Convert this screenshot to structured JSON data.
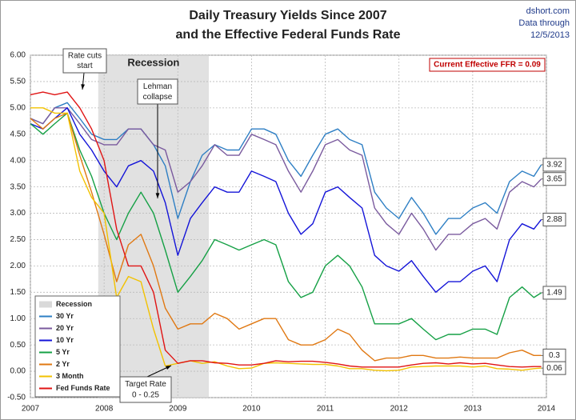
{
  "chart_data": {
    "type": "line",
    "title": [
      "Daily Treasury Yields Since 2007",
      "and the Effective Federal Funds Rate"
    ],
    "source": [
      "dshort.com",
      "Data through",
      "12/5/2013"
    ],
    "xlim": [
      2007,
      2014
    ],
    "xticks": [
      2007,
      2008,
      2009,
      2010,
      2011,
      2012,
      2013,
      2014
    ],
    "ylim": [
      -0.5,
      6
    ],
    "yticks": [
      {
        "value": -0.5,
        "label": "-0.50"
      },
      {
        "value": 0,
        "label": "0.00"
      },
      {
        "value": 0.5,
        "label": "0.50"
      },
      {
        "value": 1,
        "label": "1.00"
      },
      {
        "value": 1.5,
        "label": "1.50"
      },
      {
        "value": 2,
        "label": "2.00"
      },
      {
        "value": 2.5,
        "label": "2.50"
      },
      {
        "value": 3,
        "label": "3.00"
      },
      {
        "value": 3.5,
        "label": "3.50"
      },
      {
        "value": 4,
        "label": "4.00"
      },
      {
        "value": 4.5,
        "label": "4.50"
      },
      {
        "value": 5,
        "label": "5.00"
      },
      {
        "value": 5.5,
        "label": "5.50"
      },
      {
        "value": 6,
        "label": "6.00"
      }
    ],
    "grid": true,
    "recession": {
      "name": "Recession",
      "start": 2007.92,
      "end": 2009.42,
      "color": "#d9d9d9"
    },
    "x": [
      2007.0,
      2007.17,
      2007.33,
      2007.5,
      2007.67,
      2007.83,
      2008.0,
      2008.17,
      2008.33,
      2008.5,
      2008.67,
      2008.83,
      2009.0,
      2009.17,
      2009.33,
      2009.5,
      2009.67,
      2009.83,
      2010.0,
      2010.17,
      2010.33,
      2010.5,
      2010.67,
      2010.83,
      2011.0,
      2011.17,
      2011.33,
      2011.5,
      2011.67,
      2011.83,
      2012.0,
      2012.17,
      2012.33,
      2012.5,
      2012.67,
      2012.83,
      2013.0,
      2013.17,
      2013.33,
      2013.5,
      2013.67,
      2013.83,
      2013.93
    ],
    "series": [
      {
        "name": "30 Yr",
        "color": "#2e7fc4",
        "end_label": true,
        "values": [
          4.8,
          4.7,
          5.0,
          5.1,
          4.8,
          4.5,
          4.4,
          4.4,
          4.6,
          4.6,
          4.3,
          3.9,
          2.9,
          3.6,
          4.1,
          4.3,
          4.2,
          4.2,
          4.6,
          4.6,
          4.5,
          4.0,
          3.7,
          4.1,
          4.5,
          4.6,
          4.4,
          4.3,
          3.4,
          3.1,
          2.9,
          3.3,
          3.0,
          2.6,
          2.9,
          2.9,
          3.1,
          3.2,
          3.0,
          3.6,
          3.8,
          3.7,
          3.92
        ]
      },
      {
        "name": "20 Yr",
        "color": "#7a5a9e",
        "end_label": true,
        "values": [
          4.8,
          4.7,
          5.0,
          5.0,
          4.7,
          4.4,
          4.3,
          4.3,
          4.6,
          4.6,
          4.3,
          4.2,
          3.4,
          3.6,
          3.9,
          4.3,
          4.1,
          4.1,
          4.5,
          4.4,
          4.3,
          3.8,
          3.4,
          3.8,
          4.3,
          4.4,
          4.2,
          4.1,
          3.1,
          2.8,
          2.6,
          3.0,
          2.7,
          2.3,
          2.6,
          2.6,
          2.8,
          2.9,
          2.7,
          3.4,
          3.6,
          3.5,
          3.65
        ]
      },
      {
        "name": "10 Yr",
        "color": "#1414d8",
        "end_label": true,
        "values": [
          4.7,
          4.6,
          4.8,
          5.0,
          4.5,
          4.2,
          3.8,
          3.5,
          3.9,
          4.0,
          3.8,
          3.2,
          2.2,
          2.9,
          3.2,
          3.5,
          3.4,
          3.4,
          3.8,
          3.7,
          3.6,
          3.0,
          2.6,
          2.8,
          3.4,
          3.5,
          3.3,
          3.1,
          2.2,
          2.0,
          1.9,
          2.1,
          1.8,
          1.5,
          1.7,
          1.7,
          1.9,
          2.0,
          1.7,
          2.5,
          2.8,
          2.7,
          2.88
        ]
      },
      {
        "name": "5 Yr",
        "color": "#15a045",
        "end_label": true,
        "values": [
          4.7,
          4.5,
          4.7,
          4.9,
          4.2,
          3.7,
          3.0,
          2.5,
          3.0,
          3.4,
          3.0,
          2.3,
          1.5,
          1.8,
          2.1,
          2.5,
          2.4,
          2.3,
          2.4,
          2.5,
          2.4,
          1.7,
          1.4,
          1.5,
          2.0,
          2.2,
          2.0,
          1.6,
          0.9,
          0.9,
          0.9,
          1.0,
          0.8,
          0.6,
          0.7,
          0.7,
          0.8,
          0.8,
          0.7,
          1.4,
          1.6,
          1.4,
          1.49
        ]
      },
      {
        "name": "2 Yr",
        "color": "#e07812",
        "end_label": true,
        "values": [
          4.8,
          4.6,
          4.8,
          4.9,
          4.1,
          3.4,
          2.6,
          1.7,
          2.4,
          2.6,
          2.0,
          1.2,
          0.8,
          0.9,
          0.9,
          1.1,
          1.0,
          0.8,
          0.9,
          1.0,
          1.0,
          0.6,
          0.5,
          0.5,
          0.6,
          0.8,
          0.7,
          0.4,
          0.2,
          0.25,
          0.25,
          0.3,
          0.3,
          0.25,
          0.25,
          0.27,
          0.25,
          0.25,
          0.25,
          0.35,
          0.4,
          0.3,
          0.3
        ]
      },
      {
        "name": "3 Month",
        "color": "#f2c200",
        "end_label": true,
        "values": [
          5.0,
          5.0,
          4.9,
          4.9,
          3.8,
          3.3,
          3.0,
          1.4,
          1.8,
          1.7,
          0.8,
          0.1,
          0.15,
          0.2,
          0.15,
          0.18,
          0.1,
          0.05,
          0.06,
          0.15,
          0.16,
          0.15,
          0.14,
          0.13,
          0.13,
          0.1,
          0.05,
          0.05,
          0.02,
          0.01,
          0.02,
          0.08,
          0.09,
          0.1,
          0.1,
          0.1,
          0.08,
          0.1,
          0.05,
          0.04,
          0.02,
          0.05,
          0.06
        ]
      },
      {
        "name": "Fed Funds Rate",
        "color": "#e01414",
        "end_label": false,
        "values": [
          5.25,
          5.3,
          5.25,
          5.3,
          5.0,
          4.6,
          4.0,
          2.7,
          2.0,
          2.0,
          1.5,
          0.4,
          0.15,
          0.2,
          0.2,
          0.16,
          0.15,
          0.12,
          0.12,
          0.15,
          0.2,
          0.18,
          0.19,
          0.19,
          0.17,
          0.14,
          0.1,
          0.08,
          0.08,
          0.08,
          0.08,
          0.12,
          0.15,
          0.16,
          0.14,
          0.16,
          0.14,
          0.15,
          0.12,
          0.09,
          0.08,
          0.09,
          0.09
        ]
      }
    ],
    "annotations": {
      "recession_label": "Recession",
      "rate_cuts": [
        "Rate cuts",
        "start"
      ],
      "lehman": [
        "Lehman",
        "collapse"
      ],
      "target_rate": [
        "Target Rate",
        "0 - 0.25"
      ],
      "current_ffr": "Current Effective FFR = 0.09"
    }
  }
}
